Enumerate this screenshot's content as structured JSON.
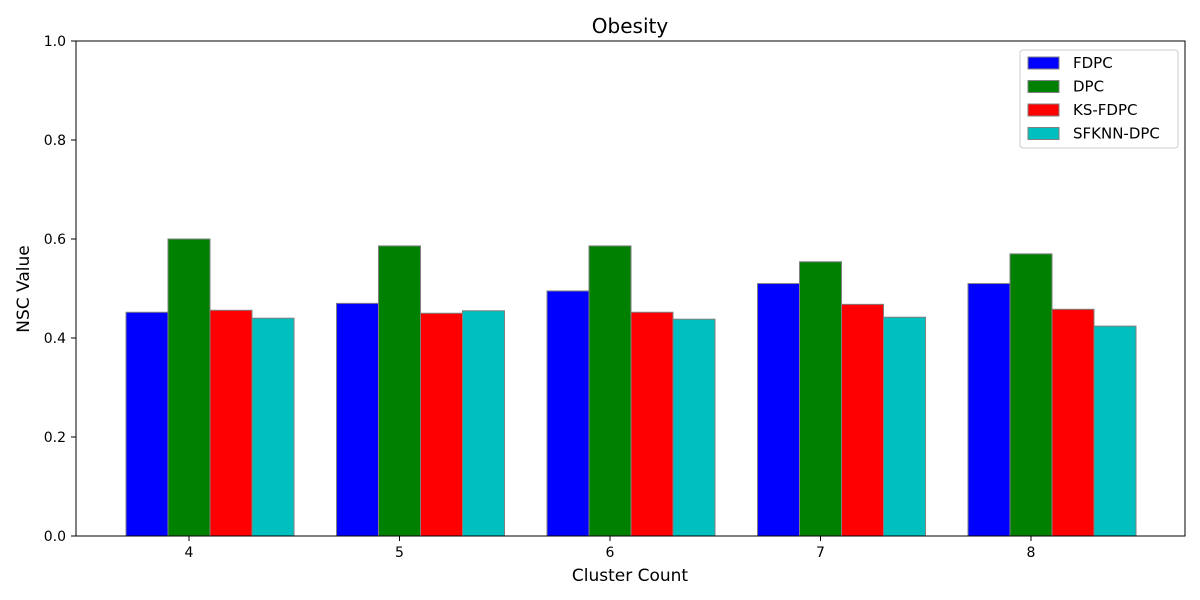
{
  "chart_data": {
    "type": "bar",
    "title": "Obesity",
    "xlabel": "Cluster Count",
    "ylabel": "NSC Value",
    "categories": [
      "4",
      "5",
      "6",
      "7",
      "8"
    ],
    "ylim": [
      0,
      1.0
    ],
    "yticks": [
      "0.0",
      "0.2",
      "0.4",
      "0.6",
      "0.8",
      "1.0"
    ],
    "grid": false,
    "legend_position": "top-right",
    "series": [
      {
        "name": "FDPC",
        "color": "#0000ff",
        "values": [
          0.452,
          0.47,
          0.495,
          0.51,
          0.51
        ]
      },
      {
        "name": "DPC",
        "color": "#008000",
        "values": [
          0.6,
          0.586,
          0.586,
          0.554,
          0.57
        ]
      },
      {
        "name": "KS-FDPC",
        "color": "#ff0000",
        "values": [
          0.456,
          0.45,
          0.452,
          0.468,
          0.458
        ]
      },
      {
        "name": "SFKNN-DPC",
        "color": "#00bfbf",
        "values": [
          0.44,
          0.455,
          0.438,
          0.442,
          0.424
        ]
      }
    ],
    "bar_edge_color": "#808080"
  }
}
